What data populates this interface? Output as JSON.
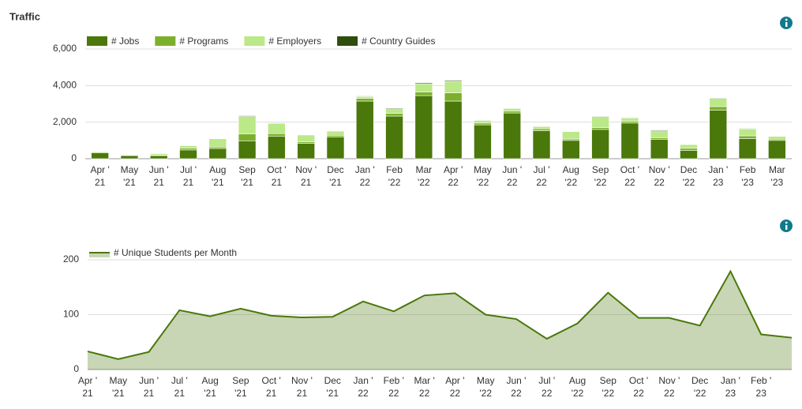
{
  "header": {
    "title": "Traffic"
  },
  "chart_data": [
    {
      "type": "bar",
      "stacked": true,
      "categories": [
        "Apr '\n21",
        "May\n'21",
        "Jun '\n21",
        "Jul '\n21",
        "Aug\n'21",
        "Sep\n'21",
        "Oct '\n21",
        "Nov '\n21",
        "Dec\n'21",
        "Jan '\n22",
        "Feb\n'22",
        "Mar\n'22",
        "Apr '\n22",
        "May\n'22",
        "Jun '\n22",
        "Jul '\n22",
        "Aug\n'22",
        "Sep\n'22",
        "Oct '\n22",
        "Nov '\n22",
        "Dec\n'22",
        "Jan '\n23",
        "Feb\n'23",
        "Mar\n'23"
      ],
      "series": [
        {
          "name": "# Jobs",
          "color": "#4a780a",
          "values": [
            320,
            170,
            170,
            480,
            560,
            980,
            1220,
            840,
            1180,
            3150,
            2330,
            3450,
            3150,
            1850,
            2500,
            1530,
            1000,
            1600,
            1950,
            1050,
            450,
            2650,
            1100,
            1000
          ]
        },
        {
          "name": "# Programs",
          "color": "#7cb02c",
          "values": [
            40,
            20,
            30,
            100,
            80,
            380,
            150,
            80,
            100,
            150,
            150,
            200,
            450,
            100,
            100,
            100,
            80,
            100,
            100,
            100,
            120,
            200,
            150,
            70
          ]
        },
        {
          "name": "# Employers",
          "color": "#bbe889",
          "values": [
            40,
            20,
            80,
            130,
            450,
            950,
            550,
            380,
            230,
            100,
            250,
            450,
            620,
            150,
            150,
            130,
            400,
            600,
            180,
            380,
            200,
            450,
            380,
            150
          ]
        },
        {
          "name": "# Country Guides",
          "color": "#2f4d0b",
          "values": [
            0,
            0,
            0,
            10,
            10,
            40,
            30,
            10,
            20,
            30,
            40,
            50,
            50,
            20,
            20,
            20,
            20,
            30,
            30,
            40,
            20,
            30,
            30,
            20
          ]
        }
      ],
      "ylim": [
        0,
        6000
      ],
      "yticks": [
        0,
        {
          "value": 2000,
          "label": "2,000"
        },
        {
          "value": 4000,
          "label": "4,000"
        },
        {
          "value": 6000,
          "label": "6,000"
        }
      ],
      "grid": true
    },
    {
      "type": "area",
      "categories": [
        "Apr '\n21",
        "May\n'21",
        "Jun '\n21",
        "Jul '\n21",
        "Aug\n'21",
        "Sep\n'21",
        "Oct '\n21",
        "Nov '\n21",
        "Dec\n'21",
        "Jan '\n22",
        "Feb '\n22",
        "Mar '\n22",
        "Apr '\n22",
        "May\n'22",
        "Jun '\n22",
        "Jul '\n22",
        "Aug\n'22",
        "Sep\n'22",
        "Oct '\n22",
        "Nov '\n22",
        "Dec\n'22",
        "Jan '\n23",
        "Feb '\n23",
        null
      ],
      "series": [
        {
          "name": "# Unique Students per Month",
          "color": "#4a780a",
          "values": [
            33,
            19,
            32,
            108,
            97,
            111,
            98,
            95,
            96,
            124,
            106,
            135,
            139,
            100,
            92,
            56,
            84,
            140,
            94,
            94,
            80,
            179,
            64,
            58
          ]
        }
      ],
      "ylim": [
        0,
        200
      ],
      "yticks": [
        0,
        100,
        200
      ],
      "grid": true
    }
  ]
}
